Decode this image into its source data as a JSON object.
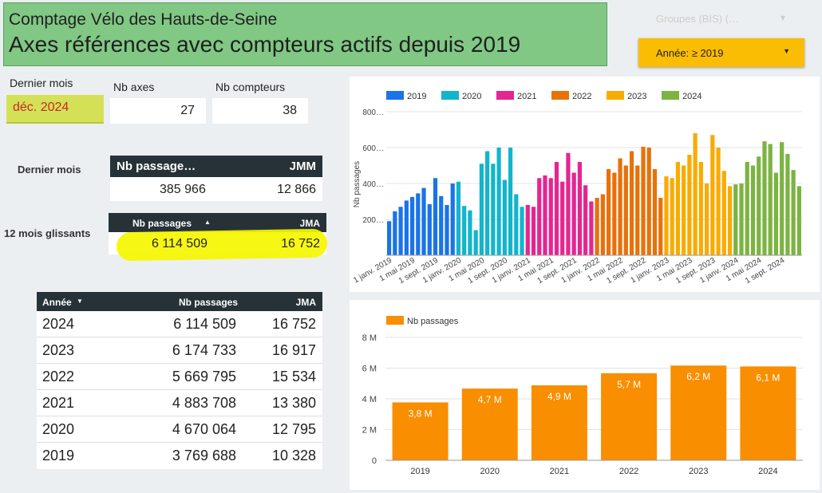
{
  "header": {
    "subtitle": "Comptage  Vélo des Hauts-de-Seine",
    "title": "Axes références avec compteurs actifs depuis 2019"
  },
  "filters": {
    "groupes_label": "Groupes (BIS) (…",
    "annee_label": "Année: ≥ 2019",
    "dropdown_arrow": "▼"
  },
  "kpis": {
    "dernier_mois_label": "Dernier mois",
    "dernier_mois_value": "déc. 2024",
    "nb_axes_label": "Nb axes",
    "nb_axes_value": "27",
    "nb_compteurs_label": "Nb compteurs",
    "nb_compteurs_value": "38"
  },
  "last_month_table": {
    "side_label": "Dernier mois",
    "col1": "Nb passage…",
    "col2": "JMM",
    "val1": "385 966",
    "val2": "12 866"
  },
  "rolling_table": {
    "side_label": "12 mois glissants",
    "col1": "Nb passages",
    "sort_arrow": "▲",
    "col2": "JMA",
    "val1": "6 114 509",
    "val2": "16 752"
  },
  "year_table": {
    "col_year": "Année",
    "sort_arrow": "▼",
    "col_passages": "Nb passages",
    "col_jma": "JMA",
    "rows": [
      {
        "year": "2024",
        "passages": "6 114 509",
        "jma": "16 752"
      },
      {
        "year": "2023",
        "passages": "6 174 733",
        "jma": "16 917"
      },
      {
        "year": "2022",
        "passages": "5 669 795",
        "jma": "15 534"
      },
      {
        "year": "2021",
        "passages": "4 883 708",
        "jma": "13 380"
      },
      {
        "year": "2020",
        "passages": "4 670 064",
        "jma": "12 795"
      },
      {
        "year": "2019",
        "passages": "3 769 688",
        "jma": "10 328"
      }
    ]
  },
  "chart_data": [
    {
      "type": "bar",
      "title": "",
      "ylabel": "Nb passages",
      "ylim": [
        0,
        800
      ],
      "yticks": [
        200,
        400,
        600,
        800
      ],
      "ytick_labels": [
        "200…",
        "400…",
        "600…",
        "800…"
      ],
      "xtick_labels": [
        "1 janv. 2019",
        "1 mai 2019",
        "1 sept. 2019",
        "1 janv. 2020",
        "1 mai 2020",
        "1 sept. 2020",
        "1 janv. 2021",
        "1 mai 2021",
        "1 sept. 2021",
        "1 janv. 2022",
        "1 mai 2022",
        "1 sept. 2022",
        "1 janv. 2023",
        "1 mai 2023",
        "1 sept. 2023",
        "1 janv. 2024",
        "1 mai 2024",
        "1 sept. 2024"
      ],
      "series": [
        {
          "name": "2019",
          "color": "#1a73e8",
          "values": [
            190,
            245,
            270,
            305,
            325,
            345,
            375,
            285,
            430,
            330,
            280,
            400
          ]
        },
        {
          "name": "2020",
          "color": "#12b5cb",
          "values": [
            410,
            275,
            250,
            140,
            510,
            580,
            510,
            600,
            420,
            600,
            340,
            270
          ]
        },
        {
          "name": "2021",
          "color": "#e52592",
          "values": [
            280,
            270,
            430,
            445,
            430,
            520,
            410,
            570,
            460,
            520,
            390,
            300
          ]
        },
        {
          "name": "2022",
          "color": "#e8710a",
          "values": [
            320,
            340,
            480,
            460,
            540,
            500,
            580,
            500,
            605,
            600,
            480,
            320
          ]
        },
        {
          "name": "2023",
          "color": "#f9ab00",
          "values": [
            440,
            430,
            520,
            500,
            560,
            680,
            520,
            400,
            670,
            600,
            470,
            385
          ]
        },
        {
          "name": "2024",
          "color": "#7cb342",
          "values": [
            395,
            400,
            520,
            500,
            550,
            635,
            620,
            460,
            630,
            565,
            475,
            385
          ]
        }
      ]
    },
    {
      "type": "bar",
      "title": "",
      "legend": "Nb passages",
      "color": "#f88e00",
      "ylim": [
        0,
        8
      ],
      "yticks": [
        0,
        2,
        4,
        6,
        8
      ],
      "ytick_labels": [
        "0",
        "2 M",
        "4 M",
        "6 M",
        "8 M"
      ],
      "categories": [
        "2019",
        "2020",
        "2021",
        "2022",
        "2023",
        "2024"
      ],
      "values": [
        3.77,
        4.67,
        4.88,
        5.67,
        6.17,
        6.11
      ],
      "data_labels": [
        "3,8 M",
        "4,7 M",
        "4,9 M",
        "5,7 M",
        "6,2 M",
        "6,1 M"
      ]
    }
  ]
}
